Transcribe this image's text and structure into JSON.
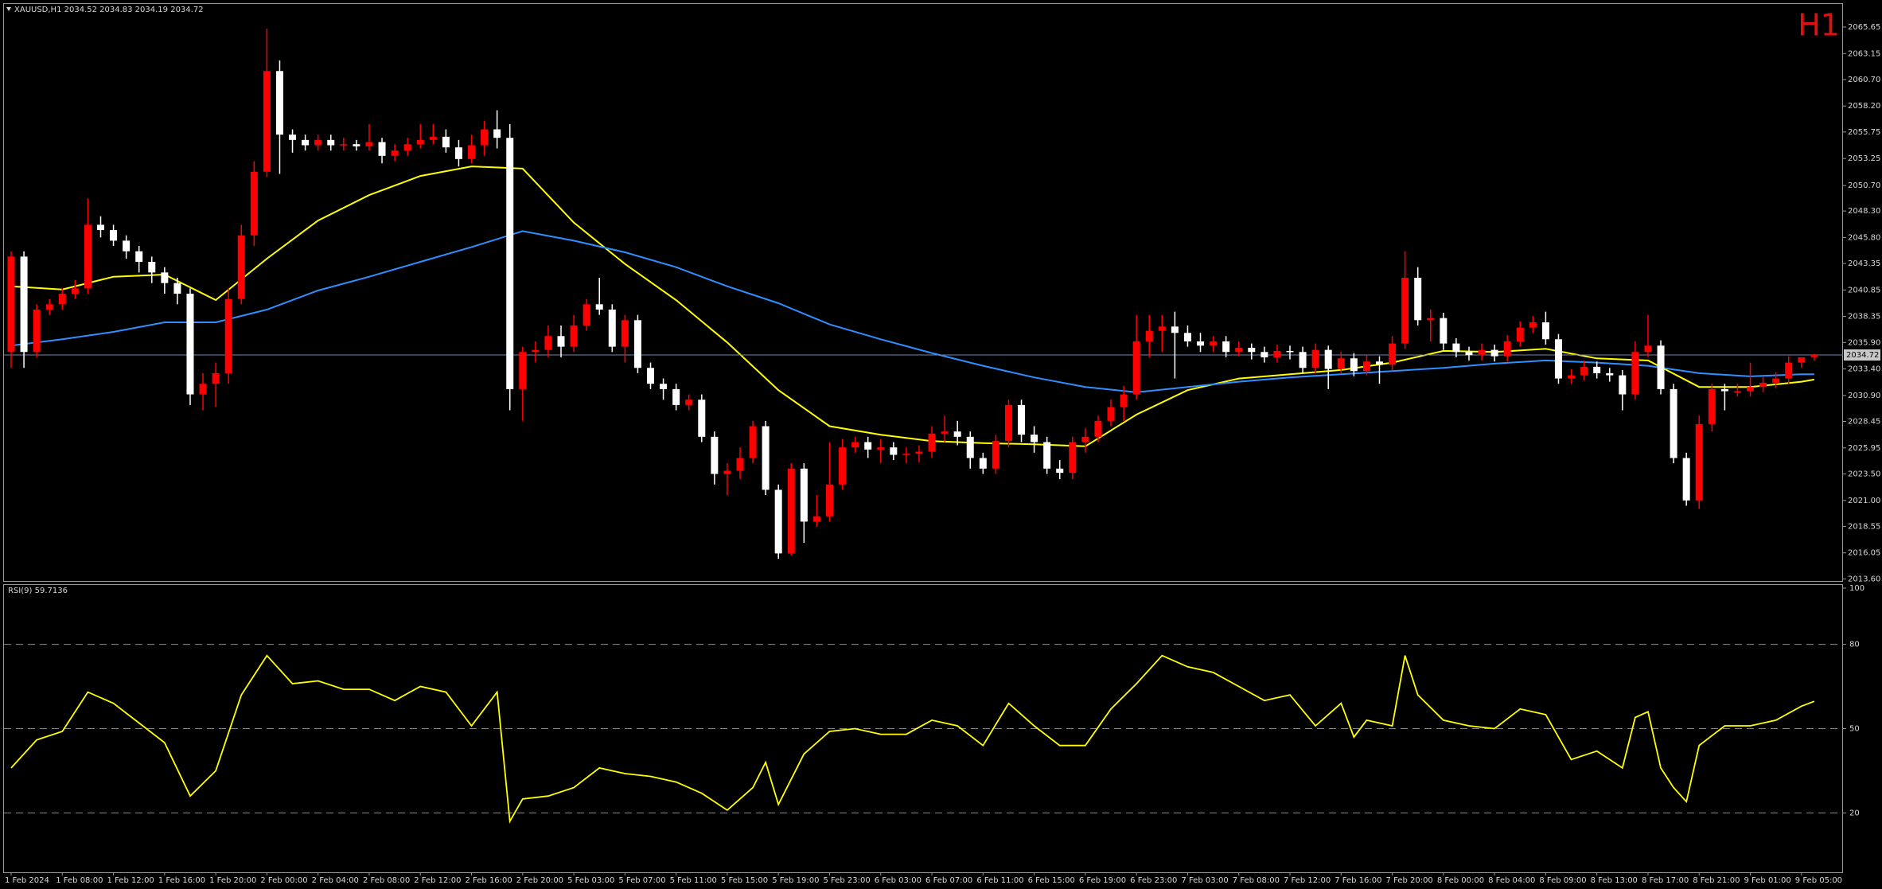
{
  "chart_data": [
    {
      "type": "candlestick",
      "title": "XAUUSD,H1 2034.52 2034.83 2034.19 2034.72",
      "timeframe": "H1",
      "bull_color": "#ff0000",
      "bear_color": "#ffffff",
      "price_line_color": "#6f83b0",
      "categories": [
        "1 Feb 2024",
        null,
        null,
        null,
        "1 Feb 08:00",
        null,
        null,
        null,
        "1 Feb 12:00",
        null,
        null,
        null,
        "1 Feb 16:00",
        null,
        null,
        null,
        "1 Feb 20:00",
        null,
        null,
        null,
        "2 Feb 00:00",
        null,
        null,
        null,
        "2 Feb 04:00",
        null,
        null,
        null,
        "2 Feb 08:00",
        null,
        null,
        null,
        "2 Feb 12:00",
        null,
        null,
        null,
        "2 Feb 16:00",
        null,
        null,
        null,
        "2 Feb 20:00",
        null,
        null,
        null,
        "5 Feb 03:00",
        null,
        null,
        null,
        "5 Feb 07:00",
        null,
        null,
        null,
        "5 Feb 11:00",
        null,
        null,
        null,
        "5 Feb 15:00",
        null,
        null,
        null,
        "5 Feb 19:00",
        null,
        null,
        null,
        "5 Feb 23:00",
        null,
        null,
        null,
        "6 Feb 03:00",
        null,
        null,
        null,
        "6 Feb 07:00",
        null,
        null,
        null,
        "6 Feb 11:00",
        null,
        null,
        null,
        "6 Feb 15:00",
        null,
        null,
        null,
        "6 Feb 19:00",
        null,
        null,
        null,
        "6 Feb 23:00",
        null,
        null,
        null,
        "7 Feb 03:00",
        null,
        null,
        null,
        "7 Feb 08:00",
        null,
        null,
        null,
        "7 Feb 12:00",
        null,
        null,
        null,
        "7 Feb 16:00",
        null,
        null,
        null,
        "7 Feb 20:00",
        null,
        null,
        null,
        "8 Feb 00:00",
        null,
        null,
        null,
        "8 Feb 04:00",
        null,
        null,
        null,
        "8 Feb 09:00",
        null,
        null,
        null,
        "8 Feb 13:00",
        null,
        null,
        null,
        "8 Feb 17:00",
        null,
        null,
        null,
        "8 Feb 21:00",
        null,
        null,
        null,
        "9 Feb 01:00",
        null,
        null,
        null,
        "9 Feb 05:00",
        null
      ],
      "open": [
        2035,
        2044,
        2035,
        2039,
        2039.5,
        2040.5,
        2041,
        2047,
        2046.5,
        2045.5,
        2044.5,
        2043.5,
        2042.5,
        2041.5,
        2040.5,
        2031,
        2032,
        2033,
        2040,
        2046,
        2052,
        2061.5,
        2055.5,
        2055,
        2054.5,
        2055,
        2054.5,
        2054.6,
        2054.4,
        2054.8,
        2053.5,
        2054,
        2054.6,
        2055,
        2055.3,
        2054.3,
        2053.2,
        2054.5,
        2056,
        2055.2,
        2031.5,
        2035,
        2035.2,
        2036.5,
        2035.5,
        2037.5,
        2039.5,
        2039,
        2035.5,
        2038,
        2033.5,
        2032,
        2031.5,
        2030,
        2030.5,
        2027,
        2023.5,
        2023.8,
        2025,
        2028,
        2022,
        2016,
        2024,
        2019,
        2019.5,
        2022.5,
        2026,
        2026.5,
        2025.8,
        2026,
        2025.3,
        2025.4,
        2025.6,
        2027.3,
        2027.5,
        2027,
        2025,
        2024,
        2026.6,
        2030,
        2027.2,
        2026.5,
        2024,
        2023.6,
        2026.5,
        2027,
        2028.5,
        2029.8,
        2031,
        2036,
        2037,
        2037.4,
        2036.8,
        2036,
        2035.6,
        2036,
        2035,
        2035.4,
        2035,
        2034.5,
        2035.1,
        2035,
        2033.5,
        2035.2,
        2033.4,
        2034.4,
        2033.2,
        2034.1,
        2033.8,
        2035.8,
        2042,
        2038,
        2038.2,
        2035.8,
        2035,
        2034.7,
        2035.2,
        2034.6,
        2036,
        2037.3,
        2037.8,
        2036.2,
        2032.5,
        2032.8,
        2033.6,
        2033,
        2032.8,
        2031,
        2035,
        2035.6,
        2031.5,
        2025,
        2021,
        2028.2,
        2031.5,
        2031.3,
        2031.3,
        2031.7,
        2032.1,
        2032.5,
        2034,
        2034.52
      ],
      "high": [
        2044.5,
        2044.5,
        2039.5,
        2040,
        2041,
        2041.8,
        2049.5,
        2047.8,
        2047,
        2046,
        2045,
        2044,
        2043,
        2042,
        2041,
        2033,
        2034,
        2041,
        2047,
        2053,
        2065.5,
        2062.5,
        2056,
        2055.5,
        2055.5,
        2055.5,
        2055.2,
        2055,
        2056.5,
        2055.2,
        2054.6,
        2055.2,
        2056.5,
        2056.5,
        2056,
        2055,
        2055.5,
        2056.8,
        2057.8,
        2056.5,
        2035.5,
        2036,
        2037.5,
        2037.5,
        2038.5,
        2040,
        2042,
        2039.5,
        2038.5,
        2038.5,
        2034,
        2032.5,
        2032,
        2031,
        2031,
        2027.5,
        2024.5,
        2026,
        2028.5,
        2028.5,
        2022.5,
        2024.5,
        2024.5,
        2021.5,
        2026.5,
        2026.8,
        2027,
        2027,
        2026.8,
        2026.5,
        2026,
        2026.2,
        2028,
        2029,
        2028.5,
        2027.5,
        2025.5,
        2027.2,
        2030.5,
        2030.5,
        2028,
        2027,
        2024.8,
        2027,
        2027.8,
        2029,
        2030.5,
        2031.8,
        2038.5,
        2038.5,
        2038.5,
        2038.8,
        2037.5,
        2036.8,
        2036.5,
        2036.5,
        2036,
        2035.8,
        2035.5,
        2035.7,
        2035.6,
        2035.5,
        2035.8,
        2035.6,
        2035,
        2034.9,
        2034.7,
        2034.6,
        2036.5,
        2044.5,
        2043,
        2039,
        2038.7,
        2036.3,
        2035.5,
        2035.8,
        2035.7,
        2036.6,
        2037.9,
        2038.4,
        2038.8,
        2036.7,
        2033.4,
        2034.2,
        2034.1,
        2033.5,
        2033.3,
        2036,
        2038.5,
        2036.1,
        2032,
        2025.5,
        2029,
        2032,
        2032,
        2032,
        2034,
        2032.7,
        2033.1,
        2034.6,
        2034.5,
        2034.83
      ],
      "low": [
        2033.5,
        2033.5,
        2034.5,
        2038.5,
        2039,
        2040,
        2040.5,
        2045.8,
        2045,
        2043.8,
        2042.5,
        2041.5,
        2040.5,
        2039.5,
        2030,
        2029.5,
        2029.8,
        2032,
        2039.5,
        2045,
        2051.5,
        2051.8,
        2053.8,
        2054,
        2054,
        2054,
        2054,
        2054,
        2054,
        2052.8,
        2053,
        2053.5,
        2054.2,
        2054.6,
        2053.8,
        2052.5,
        2052.8,
        2053.5,
        2054.2,
        2029.5,
        2028.5,
        2034,
        2034.5,
        2034.5,
        2035,
        2037,
        2038.5,
        2035,
        2034,
        2033,
        2031.5,
        2030.5,
        2029.5,
        2029.5,
        2026.5,
        2022.5,
        2021.5,
        2023,
        2024.5,
        2021.5,
        2015.5,
        2015.8,
        2017,
        2018.5,
        2019,
        2022,
        2025.5,
        2025,
        2024.5,
        2024.8,
        2024.5,
        2024.6,
        2025,
        2026.5,
        2026.2,
        2024,
        2023.5,
        2023.5,
        2026,
        2026.5,
        2025.5,
        2023.5,
        2023,
        2023,
        2025.5,
        2026.5,
        2028,
        2028.5,
        2030.5,
        2034.5,
        2035,
        2032.5,
        2035.5,
        2035,
        2035,
        2034.5,
        2034.6,
        2034.3,
        2034,
        2034,
        2034.3,
        2033,
        2033,
        2031.5,
        2033,
        2032.7,
        2032.8,
        2032,
        2033.3,
        2035.3,
        2037.5,
        2036,
        2035.2,
        2034.5,
        2034.2,
        2034.2,
        2034.1,
        2034.1,
        2035.5,
        2036.8,
        2035.7,
        2032,
        2032,
        2032.3,
        2032.5,
        2032.2,
        2029.5,
        2030.5,
        2034.5,
        2031,
        2024.5,
        2020.5,
        2020.2,
        2027.5,
        2029.5,
        2030.8,
        2030.8,
        2031.2,
        2031.6,
        2032,
        2033.5,
        2034.19
      ],
      "close": [
        2044,
        2035,
        2039,
        2039.5,
        2040.5,
        2041,
        2047,
        2046.5,
        2045.5,
        2044.5,
        2043.5,
        2042.5,
        2041.5,
        2040.5,
        2031,
        2032,
        2033,
        2040,
        2046,
        2052,
        2061.5,
        2055.5,
        2055,
        2054.5,
        2055,
        2054.5,
        2054.6,
        2054.4,
        2054.8,
        2053.5,
        2054,
        2054.6,
        2055,
        2055.3,
        2054.3,
        2053.2,
        2054.5,
        2056,
        2055.2,
        2031.5,
        2035,
        2035.2,
        2036.5,
        2035.5,
        2037.5,
        2039.5,
        2039,
        2035.5,
        2038,
        2033.5,
        2032,
        2031.5,
        2030,
        2030.5,
        2027,
        2023.5,
        2023.8,
        2025,
        2028,
        2022,
        2016,
        2024,
        2019,
        2019.5,
        2022.5,
        2026,
        2026.5,
        2025.8,
        2026,
        2025.3,
        2025.4,
        2025.6,
        2027.3,
        2027.5,
        2027,
        2025,
        2024,
        2026.6,
        2030,
        2027.2,
        2026.5,
        2024,
        2023.6,
        2026.5,
        2027,
        2028.5,
        2029.8,
        2031,
        2036,
        2037,
        2037.4,
        2036.8,
        2036,
        2035.6,
        2036,
        2035,
        2035.4,
        2035,
        2034.5,
        2035.1,
        2035,
        2033.5,
        2035.2,
        2033.4,
        2034.4,
        2033.2,
        2034.1,
        2033.8,
        2035.8,
        2042,
        2038,
        2038.2,
        2035.8,
        2035,
        2034.7,
        2035.2,
        2034.6,
        2036,
        2037.3,
        2037.8,
        2036.2,
        2032.5,
        2032.8,
        2033.6,
        2033,
        2032.8,
        2031,
        2035,
        2035.6,
        2031.5,
        2025,
        2021,
        2028.2,
        2031.5,
        2031.3,
        2031.3,
        2031.7,
        2032.1,
        2032.5,
        2034,
        2034.5,
        2034.72
      ],
      "moving_averages": [
        {
          "color": "#ffff00",
          "x": [
            0,
            4,
            8,
            12,
            16,
            20,
            24,
            28,
            32,
            36,
            40,
            44,
            48,
            52,
            56,
            60,
            64,
            68,
            72,
            76,
            80,
            84,
            88,
            92,
            96,
            100,
            104,
            108,
            112,
            116,
            120,
            124,
            128,
            132,
            136,
            140,
            141
          ],
          "values": [
            2041.2,
            2040.9,
            2042.1,
            2042.3,
            2039.9,
            2043.8,
            2047.4,
            2049.8,
            2051.6,
            2052.5,
            2052.3,
            2047.2,
            2043.3,
            2039.9,
            2035.9,
            2031.4,
            2028,
            2027.2,
            2026.6,
            2026.4,
            2026.3,
            2026.1,
            2029.1,
            2031.4,
            2032.5,
            2032.9,
            2033.3,
            2034,
            2035.1,
            2035,
            2035.3,
            2034.4,
            2034.2,
            2031.7,
            2031.7,
            2032.2,
            2032.4
          ]
        },
        {
          "color": "#2f8fff",
          "x": [
            0,
            4,
            8,
            12,
            16,
            20,
            24,
            28,
            32,
            36,
            40,
            44,
            48,
            52,
            56,
            60,
            64,
            68,
            72,
            76,
            80,
            84,
            88,
            92,
            96,
            100,
            104,
            108,
            112,
            116,
            120,
            124,
            128,
            132,
            136,
            140,
            141
          ],
          "values": [
            2035.6,
            2036.2,
            2036.9,
            2037.8,
            2037.8,
            2039,
            2040.8,
            2042.1,
            2043.5,
            2044.9,
            2046.4,
            2045.5,
            2044.4,
            2043,
            2041.2,
            2039.6,
            2037.6,
            2036.2,
            2034.9,
            2033.7,
            2032.6,
            2031.7,
            2031.2,
            2031.7,
            2032.2,
            2032.6,
            2032.9,
            2033.2,
            2033.5,
            2033.9,
            2034.2,
            2034,
            2033.7,
            2033,
            2032.7,
            2032.9,
            2032.9
          ]
        }
      ],
      "ylim": [
        2013.4,
        2067.6
      ],
      "yticks": [
        {
          "value": 2013.6,
          "label": "2013.60"
        },
        {
          "value": 2016.05,
          "label": "2016.05"
        },
        {
          "value": 2018.55,
          "label": "2018.55"
        },
        {
          "value": 2021,
          "label": "2021.00"
        },
        {
          "value": 2023.5,
          "label": "2023.50"
        },
        {
          "value": 2025.95,
          "label": "2025.95"
        },
        {
          "value": 2028.45,
          "label": "2028.45"
        },
        {
          "value": 2030.9,
          "label": "2030.90"
        },
        {
          "value": 2033.4,
          "label": "2033.40"
        },
        {
          "value": 2035.9,
          "label": "2035.90"
        },
        {
          "value": 2038.35,
          "label": "2038.35"
        },
        {
          "value": 2040.85,
          "label": "2040.85"
        },
        {
          "value": 2043.35,
          "label": "2043.35"
        },
        {
          "value": 2045.8,
          "label": "2045.80"
        },
        {
          "value": 2048.3,
          "label": "2048.30"
        },
        {
          "value": 2050.7,
          "label": "2050.70"
        },
        {
          "value": 2053.25,
          "label": "2053.25"
        },
        {
          "value": 2055.75,
          "label": "2055.75"
        },
        {
          "value": 2058.2,
          "label": "2058.20"
        },
        {
          "value": 2060.7,
          "label": "2060.70"
        },
        {
          "value": 2063.15,
          "label": "2063.15"
        },
        {
          "value": 2065.65,
          "label": "2065.65"
        }
      ]
    },
    {
      "type": "line",
      "title": "RSI(9) 59.7136",
      "color": "#ffff00",
      "level_color": "#8a8a8a",
      "x": [
        0,
        2,
        4,
        6,
        8,
        10,
        12,
        14,
        16,
        18,
        20,
        22,
        24,
        26,
        28,
        30,
        32,
        34,
        36,
        38,
        39,
        40,
        42,
        44,
        46,
        48,
        50,
        52,
        54,
        56,
        58,
        59,
        60,
        62,
        64,
        66,
        68,
        70,
        72,
        74,
        76,
        78,
        80,
        82,
        84,
        86,
        88,
        90,
        92,
        94,
        96,
        98,
        100,
        102,
        104,
        105,
        106,
        108,
        109,
        110,
        112,
        114,
        116,
        118,
        120,
        122,
        124,
        126,
        127,
        128,
        129,
        130,
        131,
        132,
        134,
        136,
        138,
        140,
        141
      ],
      "values": [
        36,
        46,
        49,
        63,
        59,
        52,
        45,
        26,
        35,
        62,
        76,
        66,
        67,
        64,
        64,
        60,
        65,
        63,
        51,
        63,
        17,
        25,
        26,
        29,
        36,
        34,
        33,
        31,
        27,
        21,
        29,
        38,
        23,
        41,
        49,
        50,
        48,
        48,
        53,
        51,
        44,
        59,
        51,
        44,
        44,
        57,
        66,
        76,
        72,
        70,
        65,
        60,
        62,
        51,
        59,
        47,
        53,
        51,
        76,
        62,
        53,
        51,
        50,
        57,
        55,
        39,
        42,
        36,
        54,
        56,
        36,
        29,
        24,
        44,
        51,
        51,
        53,
        58,
        59.7136
      ],
      "ylim": [
        0,
        100
      ],
      "yticks": [
        20,
        50,
        80,
        100
      ],
      "levels": [
        20,
        50,
        80
      ]
    }
  ]
}
